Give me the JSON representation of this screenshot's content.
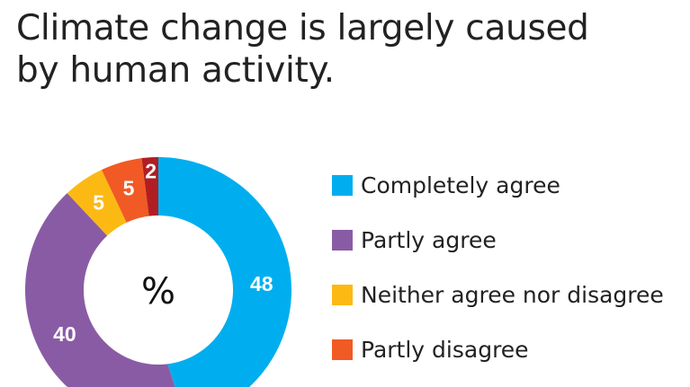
{
  "title": "Climate change is largely caused by human activity.",
  "title_lines": [
    "Climate change is largely caused",
    "by human activity."
  ],
  "chart_data": {
    "type": "pie",
    "donut": true,
    "center_label": "%",
    "categories": [
      "Completely agree",
      "Partly agree",
      "Neither agree nor disagree",
      "Partly disagree",
      ""
    ],
    "values": [
      48,
      40,
      5,
      5,
      2
    ],
    "data_labels": [
      "48",
      "40",
      "5",
      "5",
      "2"
    ],
    "colors": [
      "#00aeef",
      "#8a5ba5",
      "#fdb913",
      "#f15a24",
      "#b01e23"
    ],
    "start": "top",
    "direction": "clockwise",
    "legend": {
      "placement": "right",
      "entries": [
        {
          "label": "Completely agree",
          "color": "#00aeef"
        },
        {
          "label": "Partly agree",
          "color": "#8a5ba5"
        },
        {
          "label": "Neither agree nor disagree",
          "color": "#fdb913"
        },
        {
          "label": "Partly disagree",
          "color": "#f15a24"
        }
      ]
    }
  }
}
